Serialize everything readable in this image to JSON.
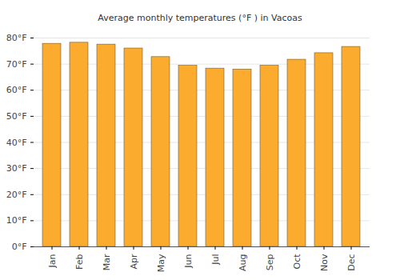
{
  "chart_data": {
    "type": "bar",
    "title": "Average monthly temperatures (°F ) in Vacoas",
    "categories": [
      "Jan",
      "Feb",
      "Mar",
      "Apr",
      "May",
      "Jun",
      "Jul",
      "Aug",
      "Sep",
      "Oct",
      "Nov",
      "Dec"
    ],
    "values": [
      77.8,
      78.2,
      77.5,
      76.0,
      72.7,
      69.4,
      68.3,
      67.9,
      69.4,
      71.7,
      74.2,
      76.6
    ],
    "color": "#fbab2e",
    "ylim": [
      0,
      80
    ],
    "yticks": [
      {
        "value": 0,
        "label": "0°F"
      },
      {
        "value": 10,
        "label": "10°F"
      },
      {
        "value": 20,
        "label": "20°F"
      },
      {
        "value": 30,
        "label": "30°F"
      },
      {
        "value": 40,
        "label": "40°F"
      },
      {
        "value": 50,
        "label": "50°F"
      },
      {
        "value": 60,
        "label": "60°F"
      },
      {
        "value": 70,
        "label": "70°F"
      },
      {
        "value": 80,
        "label": "80°F"
      }
    ],
    "grid": true
  }
}
